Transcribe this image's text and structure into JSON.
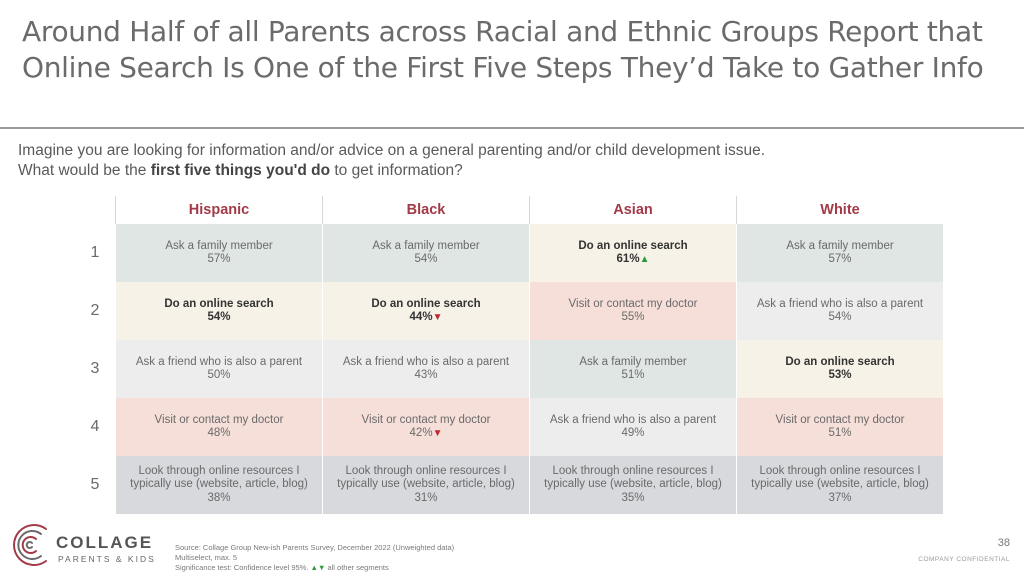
{
  "title": {
    "line1": "Around Half of all Parents across Racial and Ethnic Groups Report that",
    "line2": "Online Search Is One of the First Five Steps They’d Take to Gather Info"
  },
  "question": {
    "line1": "Imagine you are looking for information and/or advice on a general parenting and/or child development issue.",
    "line2_prefix": "What would be the ",
    "line2_bold": "first five things you'd do",
    "line2_suffix": " to get information?"
  },
  "columns": [
    "Hispanic",
    "Black",
    "Asian",
    "White"
  ],
  "rows": [
    {
      "rank": "1",
      "cells": [
        {
          "label": "Ask a family member",
          "value": "57%",
          "kind": "family",
          "bold": false,
          "sig": ""
        },
        {
          "label": "Ask a family member",
          "value": "54%",
          "kind": "family",
          "bold": false,
          "sig": ""
        },
        {
          "label": "Do an online search",
          "value": "61%",
          "kind": "search",
          "bold": true,
          "sig": "▲"
        },
        {
          "label": "Ask a family member",
          "value": "57%",
          "kind": "family",
          "bold": false,
          "sig": ""
        }
      ]
    },
    {
      "rank": "2",
      "cells": [
        {
          "label": "Do an online search",
          "value": "54%",
          "kind": "search",
          "bold": true,
          "sig": ""
        },
        {
          "label": "Do an online search",
          "value": "44%",
          "kind": "search",
          "bold": true,
          "sig": "▼"
        },
        {
          "label": "Visit or contact my doctor",
          "value": "55%",
          "kind": "doctor",
          "bold": false,
          "sig": ""
        },
        {
          "label": "Ask a friend who is also a parent",
          "value": "54%",
          "kind": "friend",
          "bold": false,
          "sig": ""
        }
      ]
    },
    {
      "rank": "3",
      "cells": [
        {
          "label": "Ask a friend who is also a parent",
          "value": "50%",
          "kind": "friend",
          "bold": false,
          "sig": ""
        },
        {
          "label": "Ask a friend who is also a parent",
          "value": "43%",
          "kind": "friend",
          "bold": false,
          "sig": ""
        },
        {
          "label": "Ask a family member",
          "value": "51%",
          "kind": "family",
          "bold": false,
          "sig": ""
        },
        {
          "label": "Do an online search",
          "value": "53%",
          "kind": "search",
          "bold": true,
          "sig": ""
        }
      ]
    },
    {
      "rank": "4",
      "cells": [
        {
          "label": "Visit or contact my doctor",
          "value": "48%",
          "kind": "doctor",
          "bold": false,
          "sig": ""
        },
        {
          "label": "Visit or contact my doctor",
          "value": "42%",
          "kind": "doctor",
          "bold": false,
          "sig": "▼"
        },
        {
          "label": "Ask a friend who is also a parent",
          "value": "49%",
          "kind": "friend",
          "bold": false,
          "sig": ""
        },
        {
          "label": "Visit or contact my doctor",
          "value": "51%",
          "kind": "doctor",
          "bold": false,
          "sig": ""
        }
      ]
    },
    {
      "rank": "5",
      "cells": [
        {
          "label": "Look through online resources I typically use (website, article, blog)",
          "value": "38%",
          "kind": "resources",
          "bold": false,
          "sig": ""
        },
        {
          "label": "Look through online resources I typically use (website, article, blog)",
          "value": "31%",
          "kind": "resources",
          "bold": false,
          "sig": ""
        },
        {
          "label": "Look through online resources I typically use (website, article, blog)",
          "value": "35%",
          "kind": "resources",
          "bold": false,
          "sig": ""
        },
        {
          "label": "Look through online resources I typically use (website, article, blog)",
          "value": "37%",
          "kind": "resources",
          "bold": false,
          "sig": ""
        }
      ]
    }
  ],
  "logo": {
    "name": "COLLAGE",
    "sub": "PARENTS & KIDS",
    "icon": "collage-fingerprint-logo"
  },
  "source": {
    "line1": "Source: Collage Group New-ish Parents Survey, December 2022 (Unweighted data)",
    "line2": "Multiselect, max. 5",
    "line3_prefix": "Significance test: Confidence level 95%.",
    "line3_symbols": "▲▼",
    "line3_suffix": " all other segments"
  },
  "colors": {
    "header_text": "#a33a48",
    "sig_up": "#2e9a3c",
    "sig_down": "#c0262e",
    "family": "#dfe6e4",
    "search": "#f7f2e7",
    "friend": "#eeedee",
    "doctor": "#f6dfd8",
    "resources": "#d7d9dd"
  },
  "footer": {
    "page_number": "38",
    "confidential": "COMPANY CONFIDENTIAL"
  }
}
